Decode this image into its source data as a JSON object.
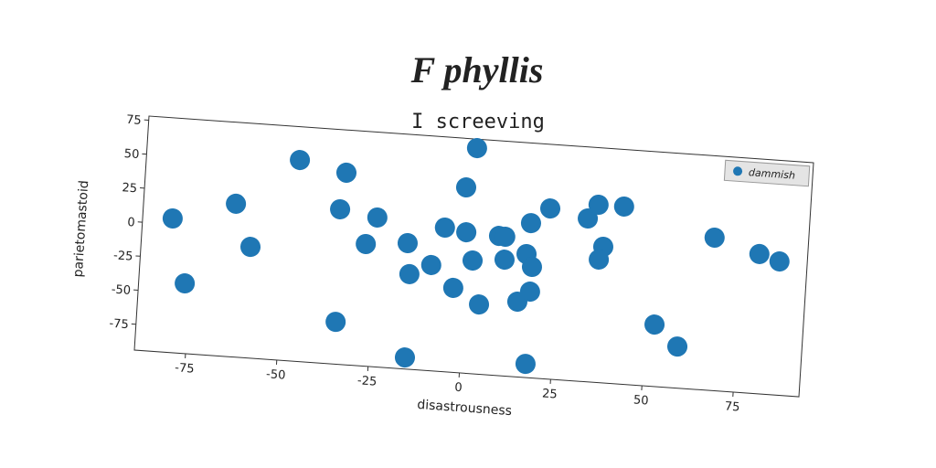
{
  "chart_data": {
    "type": "scatter",
    "title": "F phyllis",
    "subtitle": "I screeving",
    "x_label": "disastrousness",
    "y_label": "parietomastoid",
    "legend": "upper right",
    "xlim": [
      -89,
      93
    ],
    "ylim": [
      -94,
      78
    ],
    "xticks": [
      -75,
      -50,
      -25,
      0,
      25,
      50,
      75
    ],
    "yticks": [
      -75,
      -50,
      -25,
      0,
      25,
      50,
      75
    ],
    "series": [
      {
        "name": "dammish",
        "color": "#1f77b4",
        "x": [
          -80.8,
          -76.4,
          -63.8,
          -59.1,
          -47.1,
          -34.2,
          -35.3,
          -25,
          -27.7,
          -34.6,
          -15.1,
          -16.3,
          -15.3,
          -9.5,
          -6.4,
          -3.1,
          -1.3,
          -0.5,
          1,
          1.7,
          4.2,
          8.5,
          10.2,
          10.4,
          14.6,
          17.9,
          16.3,
          18,
          17.9,
          17,
          22,
          32.4,
          35.1,
          37.1,
          36.1,
          42.1,
          52.4,
          59,
          67.3,
          79.8,
          85.4
        ],
        "values": [
          4.3,
          -42.6,
          18.3,
          -12.5,
          53.6,
          46.7,
          19.6,
          15.5,
          -4.5,
          -63,
          -85.5,
          -1.7,
          -24.3,
          -16.5,
          11.6,
          -32.1,
          42.1,
          9.3,
          71.4,
          -11.1,
          -42.9,
          8.3,
          8,
          -8.8,
          -38.9,
          -84,
          -3.6,
          -12.7,
          -30.9,
          19.3,
          31,
          25.6,
          36.2,
          5.7,
          -3.9,
          36.2,
          -48.6,
          -63.5,
          18.1,
          8.4,
          4
        ]
      }
    ]
  }
}
